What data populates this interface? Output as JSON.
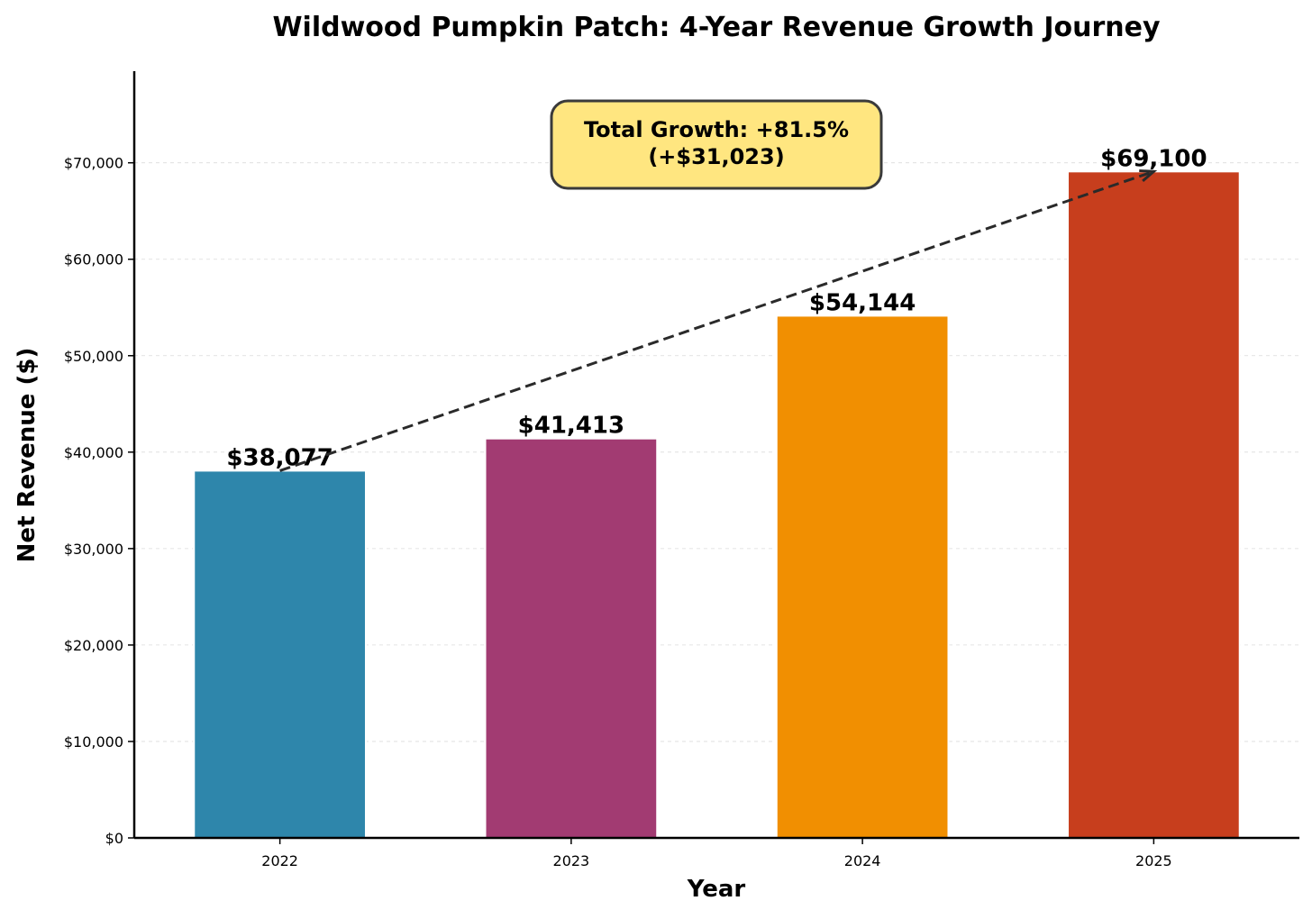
{
  "chart_data": {
    "type": "bar",
    "title": "Wildwood Pumpkin Patch: 4-Year Revenue Growth Journey",
    "xlabel": "Year",
    "ylabel": "Net Revenue ($)",
    "categories": [
      "2022",
      "2023",
      "2024",
      "2025"
    ],
    "values": [
      38077,
      41413,
      54144,
      69100
    ],
    "value_labels": [
      "$38,077",
      "$41,413",
      "$54,144",
      "$69,100"
    ],
    "colors": [
      "#2E86AB",
      "#A23B72",
      "#F18F01",
      "#C73E1D"
    ],
    "ylim": [
      0,
      79500
    ],
    "yticks": [
      0,
      10000,
      20000,
      30000,
      40000,
      50000,
      60000,
      70000
    ],
    "ytick_labels": [
      "$0",
      "$10,000",
      "$20,000",
      "$30,000",
      "$40,000",
      "$50,000",
      "$60,000",
      "$70,000"
    ],
    "grid": "horizontal dashed",
    "annotation": {
      "line1": "Total Growth: +81.5%",
      "line2": "(+$31,023)",
      "box_color": "#FFE680",
      "arrow_from_category": "2022",
      "arrow_to_category": "2025"
    }
  }
}
